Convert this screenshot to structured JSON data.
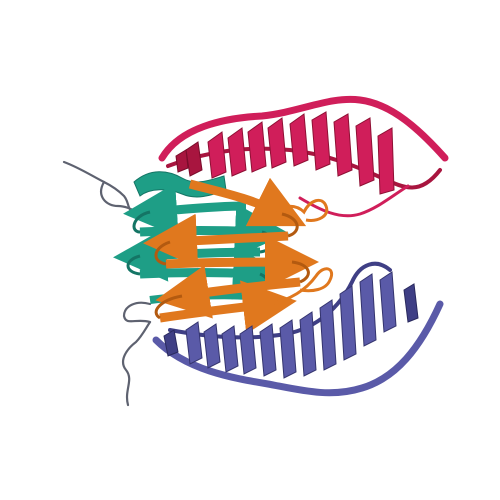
{
  "image": {
    "subject": "protein-ribbon-structure",
    "background": "#ffffff",
    "chains": [
      {
        "name": "chain-a",
        "color": "#d01e5a",
        "shade": "#a8153f"
      },
      {
        "name": "chain-b",
        "color": "#1e9e86",
        "shade": "#147565"
      },
      {
        "name": "chain-c",
        "color": "#e0781e",
        "shade": "#b35a10"
      },
      {
        "name": "chain-d",
        "color": "#5a5aa8",
        "shade": "#3f3f85"
      }
    ],
    "coil_color": "#5e6270"
  }
}
